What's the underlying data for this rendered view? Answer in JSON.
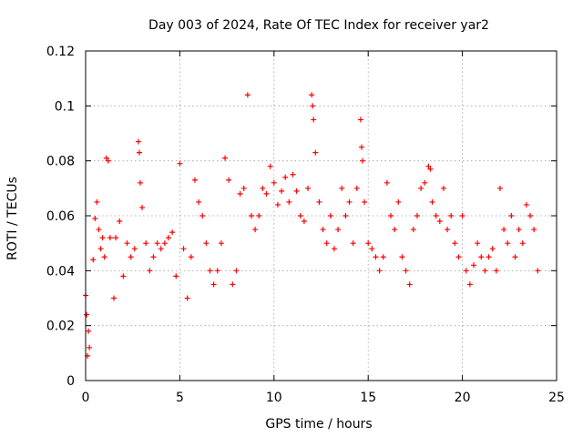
{
  "chart_data": {
    "type": "scatter",
    "title": "Day 003 of 2024, Rate Of TEC Index for receiver yar2",
    "xlabel": "GPS time / hours",
    "ylabel": "ROTI / TECUs",
    "xlim": [
      0,
      25
    ],
    "ylim": [
      0,
      0.12
    ],
    "xticks": [
      0,
      5,
      10,
      15,
      20,
      25
    ],
    "xtick_labels": [
      "0",
      "5",
      "10",
      "15",
      "20",
      "25"
    ],
    "yticks": [
      0,
      0.02,
      0.04,
      0.06,
      0.08,
      0.1,
      0.12
    ],
    "ytick_labels": [
      "0",
      "0.02",
      "0.04",
      "0.06",
      "0.08",
      "0.1",
      "0.12"
    ],
    "grid": true,
    "marker": "+",
    "color": "#ff0000",
    "series": [
      {
        "name": "ROTI",
        "x": [
          0.0,
          0.05,
          0.1,
          0.15,
          0.2,
          0.4,
          0.5,
          0.6,
          0.7,
          0.8,
          0.9,
          1.0,
          1.1,
          1.2,
          1.3,
          1.5,
          1.6,
          1.8,
          2.0,
          2.2,
          2.4,
          2.6,
          2.8,
          2.85,
          2.9,
          3.0,
          3.2,
          3.4,
          3.6,
          3.8,
          4.0,
          4.2,
          4.4,
          4.6,
          4.8,
          5.0,
          5.2,
          5.4,
          5.6,
          5.8,
          6.0,
          6.2,
          6.4,
          6.6,
          6.8,
          7.0,
          7.2,
          7.4,
          7.6,
          7.8,
          8.0,
          8.2,
          8.4,
          8.6,
          8.8,
          9.0,
          9.2,
          9.4,
          9.6,
          9.8,
          10.0,
          10.2,
          10.4,
          10.6,
          10.8,
          11.0,
          11.2,
          11.4,
          11.6,
          11.8,
          12.0,
          12.05,
          12.1,
          12.2,
          12.4,
          12.6,
          12.8,
          13.0,
          13.2,
          13.4,
          13.6,
          13.8,
          14.0,
          14.2,
          14.4,
          14.6,
          14.65,
          14.7,
          14.8,
          15.0,
          15.2,
          15.4,
          15.6,
          15.8,
          16.0,
          16.2,
          16.4,
          16.6,
          16.8,
          17.0,
          17.2,
          17.4,
          17.6,
          17.8,
          18.0,
          18.2,
          18.3,
          18.4,
          18.6,
          18.8,
          19.0,
          19.2,
          19.4,
          19.6,
          19.8,
          20.0,
          20.2,
          20.4,
          20.6,
          20.8,
          21.0,
          21.2,
          21.4,
          21.6,
          21.8,
          22.0,
          22.2,
          22.4,
          22.6,
          22.8,
          23.0,
          23.2,
          23.4,
          23.6,
          23.8,
          24.0
        ],
        "y": [
          0.031,
          0.024,
          0.009,
          0.018,
          0.012,
          0.044,
          0.059,
          0.065,
          0.055,
          0.048,
          0.052,
          0.045,
          0.081,
          0.08,
          0.052,
          0.03,
          0.052,
          0.058,
          0.038,
          0.05,
          0.045,
          0.048,
          0.087,
          0.083,
          0.072,
          0.063,
          0.05,
          0.04,
          0.045,
          0.05,
          0.048,
          0.05,
          0.052,
          0.054,
          0.038,
          0.079,
          0.048,
          0.03,
          0.045,
          0.073,
          0.065,
          0.06,
          0.05,
          0.04,
          0.035,
          0.04,
          0.05,
          0.081,
          0.073,
          0.035,
          0.04,
          0.068,
          0.07,
          0.104,
          0.06,
          0.055,
          0.06,
          0.07,
          0.068,
          0.078,
          0.072,
          0.064,
          0.069,
          0.074,
          0.065,
          0.075,
          0.069,
          0.06,
          0.058,
          0.07,
          0.104,
          0.1,
          0.095,
          0.083,
          0.065,
          0.055,
          0.05,
          0.06,
          0.048,
          0.055,
          0.07,
          0.06,
          0.065,
          0.05,
          0.07,
          0.095,
          0.085,
          0.08,
          0.065,
          0.05,
          0.048,
          0.045,
          0.04,
          0.045,
          0.072,
          0.06,
          0.055,
          0.065,
          0.045,
          0.04,
          0.035,
          0.055,
          0.06,
          0.07,
          0.072,
          0.078,
          0.077,
          0.065,
          0.06,
          0.058,
          0.07,
          0.055,
          0.06,
          0.05,
          0.045,
          0.06,
          0.04,
          0.035,
          0.042,
          0.05,
          0.045,
          0.04,
          0.045,
          0.048,
          0.04,
          0.07,
          0.055,
          0.05,
          0.06,
          0.045,
          0.055,
          0.05,
          0.064,
          0.06,
          0.055,
          0.04
        ]
      }
    ]
  }
}
